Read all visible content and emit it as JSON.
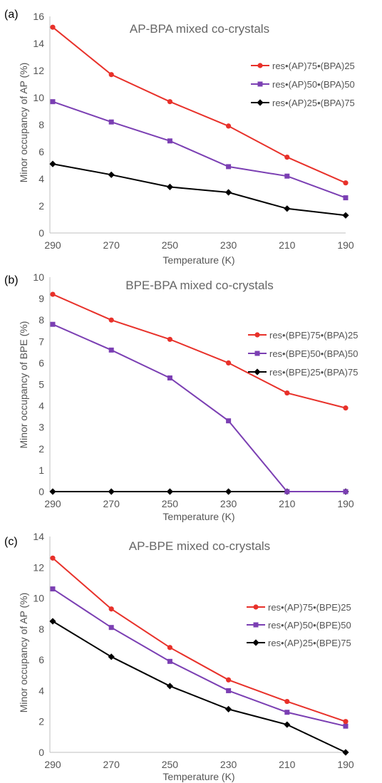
{
  "panels": [
    {
      "label": "(a)",
      "colors": [
        "#e8312a",
        "#7b3fb3",
        "#000000"
      ],
      "markers": [
        "circle",
        "square",
        "diamond"
      ],
      "chart_data": {
        "type": "line",
        "title": "AP-BPA mixed co-crystals",
        "xlabel": "Temperature (K)",
        "ylabel": "Minor occupancy of AP (%)",
        "x": [
          "290",
          "270",
          "250",
          "230",
          "210",
          "190"
        ],
        "ylim": [
          0,
          16
        ],
        "yticks": [
          "0",
          "2",
          "4",
          "6",
          "8",
          "10",
          "12",
          "14",
          "16"
        ],
        "grid": false,
        "legend_position": "right",
        "series": [
          {
            "name": "res•(AP)75•(BPA)25",
            "values": [
              15.2,
              11.7,
              9.7,
              7.9,
              5.6,
              3.7
            ]
          },
          {
            "name": "res•(AP)50•(BPA)50",
            "values": [
              9.7,
              8.2,
              6.8,
              4.9,
              4.2,
              2.6
            ]
          },
          {
            "name": "res•(AP)25•(BPA)75",
            "values": [
              5.1,
              4.3,
              3.4,
              3.0,
              1.8,
              1.3
            ]
          }
        ]
      }
    },
    {
      "label": "(b)",
      "colors": [
        "#e8312a",
        "#7b3fb3",
        "#000000"
      ],
      "markers": [
        "circle",
        "square",
        "diamond"
      ],
      "chart_data": {
        "type": "line",
        "title": "BPE-BPA mixed co-crystals",
        "xlabel": "Temperature (K)",
        "ylabel": "Minor occupancy of BPE (%)",
        "x": [
          "290",
          "270",
          "250",
          "230",
          "210",
          "190"
        ],
        "ylim": [
          0,
          10
        ],
        "yticks": [
          "0",
          "1",
          "2",
          "3",
          "4",
          "5",
          "6",
          "7",
          "8",
          "9",
          "10"
        ],
        "grid": false,
        "legend_position": "right",
        "series": [
          {
            "name": "res•(BPE)75•(BPA)25",
            "values": [
              9.2,
              8.0,
              7.1,
              6.0,
              4.6,
              3.9
            ]
          },
          {
            "name": "res•(BPE)50•(BPA)50",
            "values": [
              7.8,
              6.6,
              5.3,
              3.3,
              0.0,
              0.0
            ]
          },
          {
            "name": "res•(BPE)25•(BPA)75",
            "values": [
              0.0,
              0.0,
              0.0,
              0.0,
              0.0,
              0.0
            ]
          }
        ]
      }
    },
    {
      "label": "(c)",
      "colors": [
        "#e8312a",
        "#7b3fb3",
        "#000000"
      ],
      "markers": [
        "circle",
        "square",
        "diamond"
      ],
      "chart_data": {
        "type": "line",
        "title": "AP-BPE mixed co-crystals",
        "xlabel": "Temperature (K)",
        "ylabel": "Minor occupancy of AP (%)",
        "x": [
          "290",
          "270",
          "250",
          "230",
          "210",
          "190"
        ],
        "ylim": [
          0,
          14
        ],
        "yticks": [
          "0",
          "2",
          "4",
          "6",
          "8",
          "10",
          "12",
          "14"
        ],
        "grid": false,
        "legend_position": "right",
        "series": [
          {
            "name": "res•(AP)75•(BPE)25",
            "values": [
              12.6,
              9.3,
              6.8,
              4.7,
              3.3,
              2.0
            ]
          },
          {
            "name": "res•(AP)50•(BPE)50",
            "values": [
              10.6,
              8.1,
              5.9,
              4.0,
              2.6,
              1.7
            ]
          },
          {
            "name": "res•(AP)25•(BPE)75",
            "values": [
              8.5,
              6.2,
              4.3,
              2.8,
              1.8,
              0.0
            ]
          }
        ]
      }
    }
  ]
}
